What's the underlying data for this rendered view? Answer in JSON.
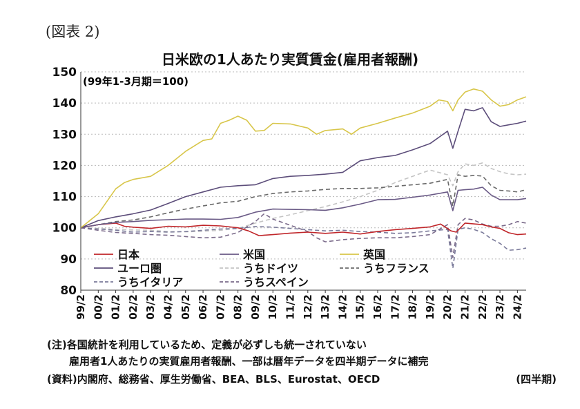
{
  "figure_label": "(図表 2)",
  "notes": {
    "note1": "(注)各国統計を利用しているため、定義が必ずしも統一されていない",
    "note2": "雇用者1人あたりの実質雇用者報酬、一部は暦年データを四半期データに補完",
    "source": "(資料)内閣府、総務省、厚生労働省、BEA、BLS、Eurostat、OECD",
    "unit": "(四半期)"
  },
  "chart_data": {
    "type": "line",
    "title": "日米欧の1人あたり実質賃金(雇用者報酬)",
    "base_note": "(99年1-3月期＝100)",
    "x_tick_labels": [
      "99/2",
      "00/2",
      "01/2",
      "02/2",
      "03/2",
      "04/2",
      "05/2",
      "06/2",
      "07/2",
      "08/2",
      "09/2",
      "10/2",
      "11/2",
      "12/2",
      "13/2",
      "14/2",
      "15/2",
      "16/2",
      "17/2",
      "18/2",
      "19/2",
      "20/2",
      "21/2",
      "22/2",
      "23/2",
      "24/2"
    ],
    "y_ticks": [
      80,
      90,
      100,
      110,
      120,
      130,
      140,
      150
    ],
    "ylim": [
      80,
      150
    ],
    "grid": "horizontal dotted",
    "legend_position": "bottom-left",
    "series": [
      {
        "name": "日本",
        "color": "#c0262a",
        "dash": "solid",
        "values": [
          [
            1999,
            100
          ],
          [
            2000,
            101
          ],
          [
            2001,
            101.5
          ],
          [
            2001.5,
            100.5
          ],
          [
            2002,
            100.2
          ],
          [
            2003,
            99.8
          ],
          [
            2004,
            100.5
          ],
          [
            2005,
            100.3
          ],
          [
            2006,
            100.8
          ],
          [
            2007,
            100.6
          ],
          [
            2008,
            100
          ],
          [
            2008.6,
            99
          ],
          [
            2009.2,
            97.5
          ],
          [
            2010,
            97.8
          ],
          [
            2011,
            98.3
          ],
          [
            2012,
            98.6
          ],
          [
            2013,
            98.2
          ],
          [
            2014,
            98.6
          ],
          [
            2015,
            98
          ],
          [
            2016,
            98.8
          ],
          [
            2017,
            99.4
          ],
          [
            2018,
            99.8
          ],
          [
            2019,
            100.3
          ],
          [
            2019.6,
            101.2
          ],
          [
            2020.2,
            99
          ],
          [
            2020.5,
            98.6
          ],
          [
            2021,
            101.5
          ],
          [
            2022,
            101
          ],
          [
            2022.5,
            100.3
          ],
          [
            2023,
            99.8
          ],
          [
            2023.5,
            98.4
          ],
          [
            2024,
            97.8
          ],
          [
            2024.5,
            98
          ]
        ]
      },
      {
        "name": "米国",
        "color": "#6a5a86",
        "dash": "solid",
        "values": [
          [
            1999,
            100
          ],
          [
            2000,
            101
          ],
          [
            2001,
            101.7
          ],
          [
            2002,
            102
          ],
          [
            2003,
            102.4
          ],
          [
            2004,
            102.6
          ],
          [
            2005,
            102.8
          ],
          [
            2006,
            102.8
          ],
          [
            2007,
            102.7
          ],
          [
            2008,
            103.3
          ],
          [
            2009,
            105
          ],
          [
            2010,
            106
          ],
          [
            2011,
            105.9
          ],
          [
            2012,
            105.8
          ],
          [
            2013,
            105.6
          ],
          [
            2014,
            106.4
          ],
          [
            2015,
            107.6
          ],
          [
            2016,
            109
          ],
          [
            2017,
            109.1
          ],
          [
            2018,
            109.8
          ],
          [
            2019,
            110.5
          ],
          [
            2020,
            111.5
          ],
          [
            2020.3,
            105.5
          ],
          [
            2020.6,
            112
          ],
          [
            2021,
            112.2
          ],
          [
            2021.5,
            112.4
          ],
          [
            2022,
            113
          ],
          [
            2022.5,
            110.5
          ],
          [
            2023,
            109
          ],
          [
            2023.5,
            109
          ],
          [
            2024,
            109
          ],
          [
            2024.5,
            109.4
          ]
        ]
      },
      {
        "name": "英国",
        "color": "#d8c64a",
        "dash": "solid",
        "values": [
          [
            1999,
            100
          ],
          [
            2000,
            104.5
          ],
          [
            2001,
            112.5
          ],
          [
            2001.5,
            114.5
          ],
          [
            2002,
            115.5
          ],
          [
            2003,
            116.5
          ],
          [
            2004,
            120
          ],
          [
            2005,
            124.5
          ],
          [
            2006,
            128
          ],
          [
            2006.5,
            128.5
          ],
          [
            2007,
            133.5
          ],
          [
            2007.5,
            134.5
          ],
          [
            2008,
            135.8
          ],
          [
            2008.5,
            134.5
          ],
          [
            2009,
            131
          ],
          [
            2009.5,
            131.2
          ],
          [
            2010,
            133.5
          ],
          [
            2011,
            133.3
          ],
          [
            2012,
            132
          ],
          [
            2012.5,
            130
          ],
          [
            2013,
            131.2
          ],
          [
            2014,
            131.7
          ],
          [
            2014.5,
            130
          ],
          [
            2015,
            132
          ],
          [
            2016,
            133.5
          ],
          [
            2017,
            135.2
          ],
          [
            2018,
            136.8
          ],
          [
            2019,
            139
          ],
          [
            2019.5,
            141
          ],
          [
            2020,
            140.5
          ],
          [
            2020.3,
            137.5
          ],
          [
            2020.6,
            141
          ],
          [
            2021,
            143.5
          ],
          [
            2021.5,
            144.5
          ],
          [
            2022,
            143.8
          ],
          [
            2022.5,
            141
          ],
          [
            2023,
            139
          ],
          [
            2023.5,
            139.5
          ],
          [
            2024,
            141
          ],
          [
            2024.5,
            142
          ]
        ]
      },
      {
        "name": "ユーロ圏",
        "color": "#5c4d7a",
        "dash": "solid",
        "values": [
          [
            1999,
            100
          ],
          [
            2000,
            102.3
          ],
          [
            2001,
            103.5
          ],
          [
            2002,
            104.5
          ],
          [
            2003,
            105.7
          ],
          [
            2004,
            107.8
          ],
          [
            2005,
            110
          ],
          [
            2006,
            111.5
          ],
          [
            2007,
            113
          ],
          [
            2008,
            113.5
          ],
          [
            2009,
            113.8
          ],
          [
            2010,
            115.8
          ],
          [
            2011,
            116.5
          ],
          [
            2012,
            116.8
          ],
          [
            2013,
            117.2
          ],
          [
            2014,
            117.8
          ],
          [
            2015,
            121.5
          ],
          [
            2016,
            122.5
          ],
          [
            2017,
            123.2
          ],
          [
            2018,
            125
          ],
          [
            2019,
            127
          ],
          [
            2020,
            131
          ],
          [
            2020.3,
            125.5
          ],
          [
            2020.6,
            131
          ],
          [
            2021,
            138
          ],
          [
            2021.5,
            137.5
          ],
          [
            2022,
            138.5
          ],
          [
            2022.5,
            134
          ],
          [
            2023,
            132.5
          ],
          [
            2023.5,
            133
          ],
          [
            2024,
            133.5
          ],
          [
            2024.5,
            134.2
          ]
        ]
      },
      {
        "name": "うちドイツ",
        "color": "#c4c4c4",
        "dash": "6,4",
        "values": [
          [
            1999,
            100
          ],
          [
            2000,
            99.8
          ],
          [
            2001,
            99.5
          ],
          [
            2002,
            99.3
          ],
          [
            2003,
            99.2
          ],
          [
            2004,
            98.8
          ],
          [
            2005,
            98.7
          ],
          [
            2006,
            98.9
          ],
          [
            2007,
            99.2
          ],
          [
            2008,
            99.8
          ],
          [
            2009,
            101.5
          ],
          [
            2010,
            103
          ],
          [
            2011,
            104.2
          ],
          [
            2012,
            105.5
          ],
          [
            2013,
            106.8
          ],
          [
            2014,
            108.3
          ],
          [
            2015,
            110
          ],
          [
            2016,
            112
          ],
          [
            2017,
            114.5
          ],
          [
            2018,
            116.5
          ],
          [
            2019,
            118.5
          ],
          [
            2020,
            117
          ],
          [
            2020.3,
            113.5
          ],
          [
            2020.6,
            118
          ],
          [
            2021,
            120.5
          ],
          [
            2021.5,
            120
          ],
          [
            2022,
            120.8
          ],
          [
            2022.5,
            119
          ],
          [
            2023,
            118
          ],
          [
            2023.5,
            117.3
          ],
          [
            2024,
            117
          ],
          [
            2024.5,
            117.2
          ]
        ]
      },
      {
        "name": "うちフランス",
        "color": "#6a6a6a",
        "dash": "6,4",
        "values": [
          [
            1999,
            100
          ],
          [
            2000,
            101
          ],
          [
            2001,
            102
          ],
          [
            2002,
            102.5
          ],
          [
            2003,
            103.5
          ],
          [
            2004,
            104.8
          ],
          [
            2005,
            106
          ],
          [
            2006,
            107
          ],
          [
            2007,
            108
          ],
          [
            2008,
            108.5
          ],
          [
            2009,
            110
          ],
          [
            2010,
            111
          ],
          [
            2011,
            111.5
          ],
          [
            2012,
            111.8
          ],
          [
            2013,
            112.3
          ],
          [
            2014,
            112.6
          ],
          [
            2015,
            112.6
          ],
          [
            2016,
            112.8
          ],
          [
            2017,
            113.3
          ],
          [
            2018,
            113.8
          ],
          [
            2019,
            114.3
          ],
          [
            2020,
            115.5
          ],
          [
            2020.3,
            107
          ],
          [
            2020.6,
            117
          ],
          [
            2021,
            116.5
          ],
          [
            2021.5,
            116.8
          ],
          [
            2022,
            116.6
          ],
          [
            2022.5,
            113.5
          ],
          [
            2023,
            112
          ],
          [
            2023.5,
            111.8
          ],
          [
            2024,
            111.5
          ],
          [
            2024.5,
            112.2
          ]
        ]
      },
      {
        "name": "うちイタリア",
        "color": "#7a7a9a",
        "dash": "6,4",
        "values": [
          [
            1999,
            100
          ],
          [
            2000,
            99.6
          ],
          [
            2001,
            99.2
          ],
          [
            2002,
            98.6
          ],
          [
            2003,
            98.8
          ],
          [
            2004,
            98.6
          ],
          [
            2005,
            98.8
          ],
          [
            2006,
            99.2
          ],
          [
            2007,
            99.6
          ],
          [
            2008,
            99.8
          ],
          [
            2009,
            100.4
          ],
          [
            2010,
            100.2
          ],
          [
            2011,
            99.8
          ],
          [
            2012,
            99.4
          ],
          [
            2013,
            99
          ],
          [
            2014,
            99.2
          ],
          [
            2015,
            98.8
          ],
          [
            2016,
            98.6
          ],
          [
            2017,
            98.2
          ],
          [
            2018,
            98.4
          ],
          [
            2019,
            99
          ],
          [
            2020,
            99.5
          ],
          [
            2020.3,
            87
          ],
          [
            2020.6,
            99.5
          ],
          [
            2021,
            100
          ],
          [
            2021.5,
            99.5
          ],
          [
            2022,
            98.5
          ],
          [
            2022.5,
            96.5
          ],
          [
            2023,
            95
          ],
          [
            2023.5,
            92.8
          ],
          [
            2024,
            93
          ],
          [
            2024.5,
            93.5
          ]
        ]
      },
      {
        "name": "うちスペイン",
        "color": "#7a6a8a",
        "dash": "6,4",
        "values": [
          [
            1999,
            100
          ],
          [
            2000,
            99.2
          ],
          [
            2001,
            98.5
          ],
          [
            2002,
            98.2
          ],
          [
            2003,
            97.8
          ],
          [
            2004,
            97.6
          ],
          [
            2005,
            97.2
          ],
          [
            2006,
            96.8
          ],
          [
            2007,
            97
          ],
          [
            2008,
            98.5
          ],
          [
            2009,
            102
          ],
          [
            2009.5,
            104.5
          ],
          [
            2010,
            102.8
          ],
          [
            2011,
            100.8
          ],
          [
            2012,
            98.8
          ],
          [
            2012.5,
            96.8
          ],
          [
            2013,
            95.5
          ],
          [
            2014,
            96.2
          ],
          [
            2015,
            96.6
          ],
          [
            2016,
            96.8
          ],
          [
            2017,
            96.8
          ],
          [
            2018,
            97.2
          ],
          [
            2019,
            97.8
          ],
          [
            2020,
            101
          ],
          [
            2020.3,
            90.5
          ],
          [
            2020.6,
            101
          ],
          [
            2021,
            103
          ],
          [
            2021.5,
            102.5
          ],
          [
            2022,
            101.2
          ],
          [
            2022.5,
            100.5
          ],
          [
            2023,
            100.5
          ],
          [
            2023.5,
            101
          ],
          [
            2024,
            102
          ],
          [
            2024.5,
            101.5
          ]
        ]
      }
    ]
  }
}
